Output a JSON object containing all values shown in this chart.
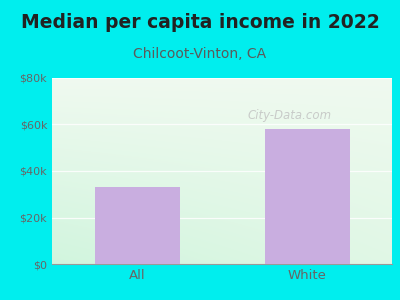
{
  "title": "Median per capita income in 2022",
  "subtitle": "Chilcoot-Vinton, CA",
  "categories": [
    "All",
    "White"
  ],
  "values": [
    33000,
    58000
  ],
  "bar_color": "#c9aee0",
  "title_fontsize": 13.5,
  "subtitle_fontsize": 10,
  "subtitle_color": "#5a5a5a",
  "title_color": "#222222",
  "bg_outer_color": "#00eeee",
  "tick_color": "#666666",
  "ylim": [
    0,
    80000
  ],
  "yticks": [
    0,
    20000,
    40000,
    60000,
    80000
  ],
  "ytick_labels": [
    "$0",
    "$20k",
    "$40k",
    "$60k",
    "$80k"
  ],
  "watermark": "City-Data.com"
}
